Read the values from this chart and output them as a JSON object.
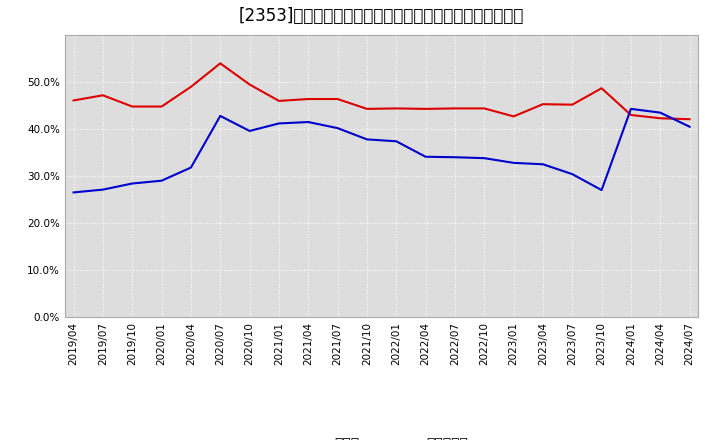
{
  "title": "[2353]　現須金、有利子負債の総資産に対する比率の推移",
  "x_labels": [
    "2019/04",
    "2019/07",
    "2019/10",
    "2020/01",
    "2020/04",
    "2020/07",
    "2020/10",
    "2021/01",
    "2021/04",
    "2021/07",
    "2021/10",
    "2022/01",
    "2022/04",
    "2022/07",
    "2022/10",
    "2023/01",
    "2023/04",
    "2023/07",
    "2023/10",
    "2024/01",
    "2024/04",
    "2024/07"
  ],
  "cash": [
    0.461,
    0.472,
    0.448,
    0.448,
    0.49,
    0.54,
    0.495,
    0.46,
    0.464,
    0.464,
    0.443,
    0.444,
    0.443,
    0.444,
    0.444,
    0.427,
    0.453,
    0.452,
    0.487,
    0.43,
    0.423,
    0.421
  ],
  "debt": [
    0.265,
    0.271,
    0.284,
    0.29,
    0.318,
    0.428,
    0.396,
    0.412,
    0.415,
    0.402,
    0.378,
    0.374,
    0.341,
    0.34,
    0.338,
    0.328,
    0.325,
    0.304,
    0.27,
    0.443,
    0.435,
    0.405
  ],
  "cash_color": "#dd0000",
  "debt_color": "#0000cc",
  "legend_cash": "現須金",
  "legend_debt": "有利子負債",
  "ylim": [
    0.0,
    0.6
  ],
  "yticks": [
    0.0,
    0.1,
    0.2,
    0.3,
    0.4,
    0.5
  ],
  "bg_color": "#ffffff",
  "plot_bg_color": "#dddddd",
  "grid_color": "#ffffff",
  "title_fontsize": 12,
  "tick_fontsize": 7.5,
  "legend_fontsize": 10
}
